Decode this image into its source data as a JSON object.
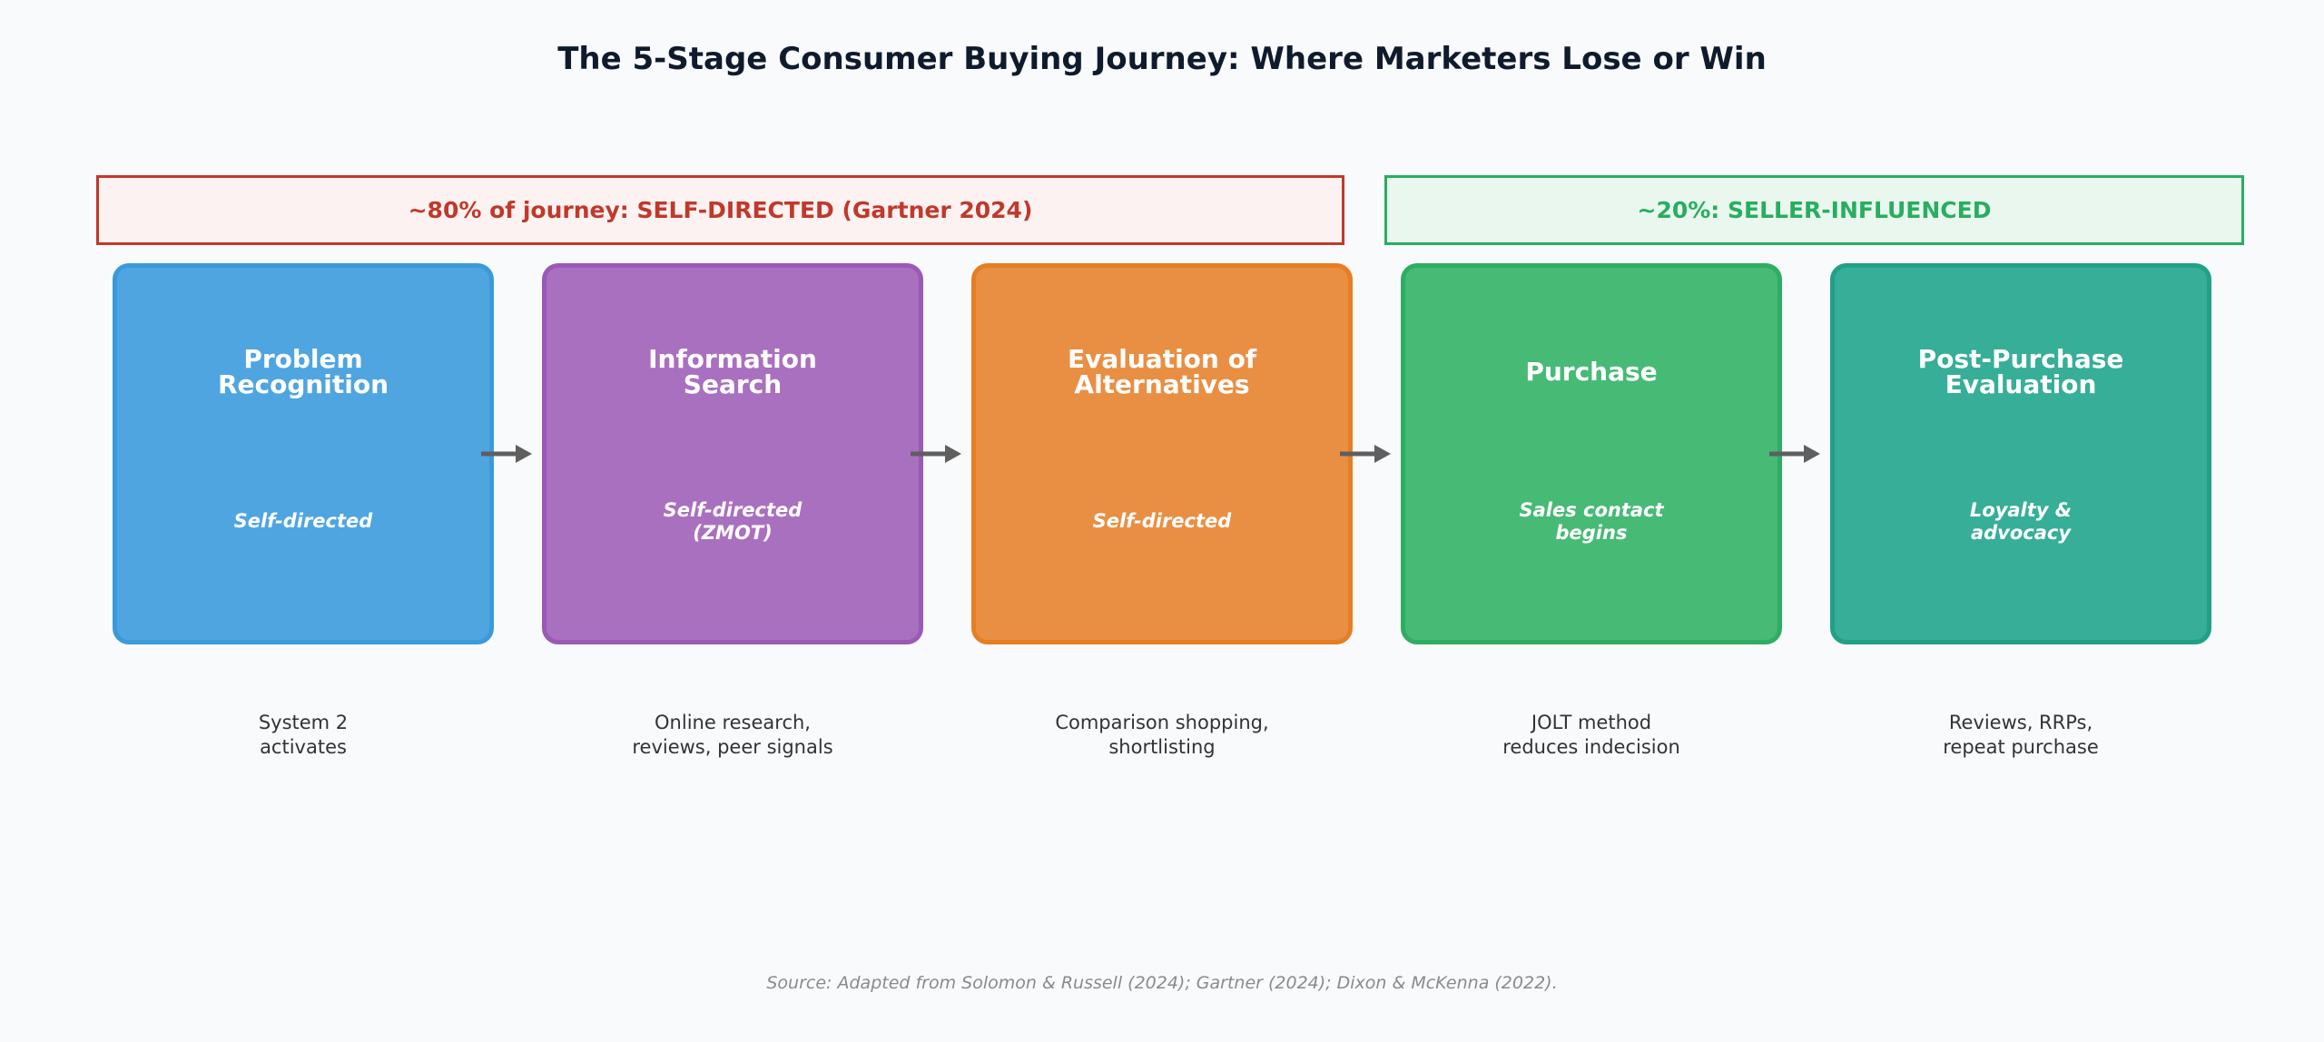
{
  "title": "The 5-Stage Consumer Buying Journey: Where Marketers Lose or Win",
  "banners": {
    "self_directed": "~80% of journey: SELF-DIRECTED (Gartner 2024)",
    "seller_influenced": "~20%: SELLER-INFLUENCED"
  },
  "stages": [
    {
      "name": "Problem\nRecognition",
      "subtitle": "Self-directed",
      "description": "System 2\nactivates",
      "fill": "#4fa5e0",
      "border": "#3b9ad9"
    },
    {
      "name": "Information\nSearch",
      "subtitle": "Self-directed\n(ZMOT)",
      "description": "Online research,\nreviews, peer signals",
      "fill": "#aa70c0",
      "border": "#9b59b6"
    },
    {
      "name": "Evaluation of\nAlternatives",
      "subtitle": "Self-directed",
      "description": "Comparison shopping,\nshortlisting",
      "fill": "#e98f43",
      "border": "#e67e22"
    },
    {
      "name": "Purchase",
      "subtitle": "Sales contact\nbegins",
      "description": "JOLT method\nreduces indecision",
      "fill": "#47ba76",
      "border": "#2eae62"
    },
    {
      "name": "Post-Purchase\nEvaluation",
      "subtitle": "Loyalty &\nadvocacy",
      "description": "Reviews, RRPs,\nrepeat purchase",
      "fill": "#37ae98",
      "border": "#22a085"
    }
  ],
  "source": "Source: Adapted from Solomon & Russell (2024); Gartner (2024); Dixon & McKenna (2022)."
}
